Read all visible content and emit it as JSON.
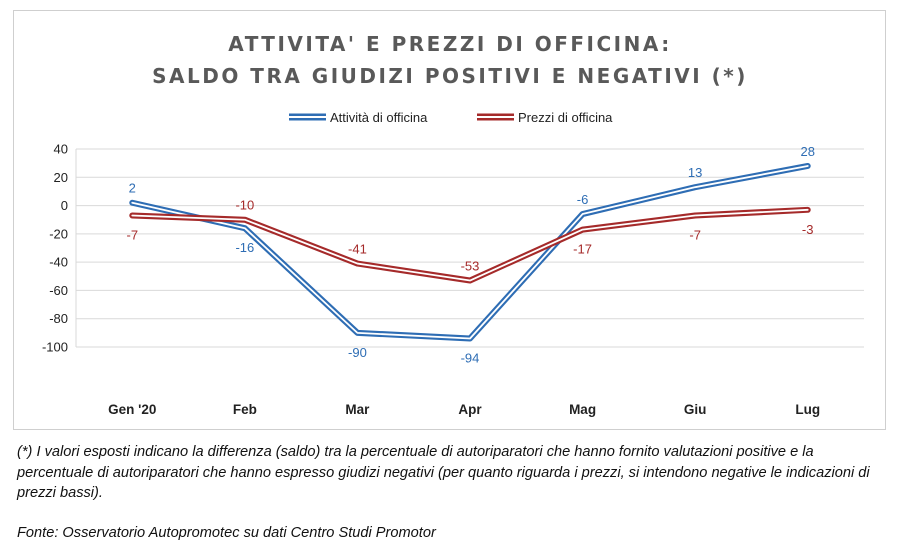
{
  "colors": {
    "attivita": "#2e6db4",
    "prezzi": "#a52a2a",
    "grid": "#d9d9d9",
    "title": "#595959"
  },
  "chart_data": {
    "type": "line",
    "title": "ATTIVITA' E PREZZI DI OFFICINA:",
    "subtitle": "SALDO TRA GIUDIZI POSITIVI E NEGATIVI (*)",
    "categories": [
      "Gen '20",
      "Feb",
      "Mar",
      "Apr",
      "Mag",
      "Giu",
      "Lug"
    ],
    "series": [
      {
        "name": "Attività di officina",
        "color": "#2e6db4",
        "values": [
          2,
          -16,
          -90,
          -94,
          -6,
          13,
          28
        ]
      },
      {
        "name": "Prezzi di officina",
        "color": "#a52a2a",
        "values": [
          -7,
          -10,
          -41,
          -53,
          -17,
          -7,
          -3
        ]
      }
    ],
    "ylim": [
      -100,
      40
    ],
    "yticks": [
      "40",
      "20",
      "0",
      "-20",
      "-40",
      "-60",
      "-80",
      "-100"
    ],
    "grid": "horizontal",
    "legend": "top-center",
    "line_style": "double",
    "data_labels": {
      "attivita": [
        "2",
        "-16",
        "-90",
        "-94",
        "-6",
        "13",
        "28"
      ],
      "prezzi": [
        "-7",
        "-10",
        "-41",
        "-53",
        "-17",
        "-7",
        "-3"
      ]
    }
  },
  "footnote": "(*) I valori esposti indicano la differenza (saldo) tra la percentuale di autoriparatori che hanno fornito valutazioni positive e la percentuale di autoriparatori che hanno espresso giudizi negativi (per quanto riguarda i prezzi, si intendono negative le indicazioni di prezzi bassi).",
  "source": "Fonte: Osservatorio Autopromotec su dati Centro Studi Promotor"
}
